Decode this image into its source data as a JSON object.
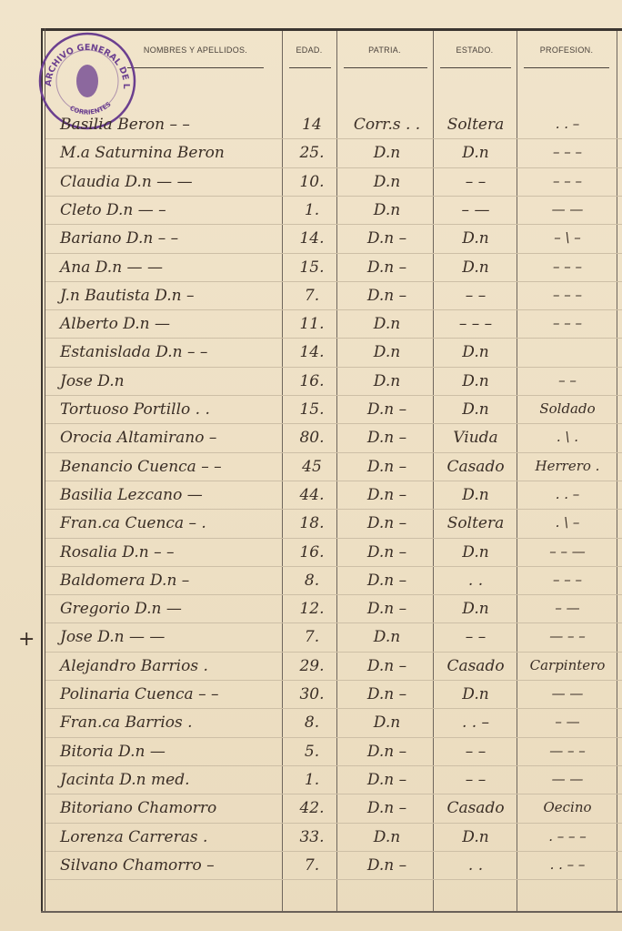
{
  "header": {
    "columns": [
      "NOMBRES Y APELLIDOS.",
      "EDAD.",
      "PATRIA.",
      "ESTADO.",
      "PROFESION."
    ]
  },
  "stamp": {
    "top_text": "ARCHIVO GENERAL DE LA PROVINCIA",
    "bottom_text": "CORRIENTES",
    "color": "#6b3f8f"
  },
  "margin_mark": "+",
  "rows": [
    {
      "name": "Basilia Beron  – –",
      "age": "14",
      "patria": "Corr.s . .",
      "estado": "Soltera",
      "profesion": ". . –"
    },
    {
      "name": "M.a Saturnina Beron",
      "age": "25.",
      "patria": "D.n",
      "estado": "D.n",
      "profesion": "– – –"
    },
    {
      "name": "Claudia   D.n  — —",
      "age": "10.",
      "patria": "D.n",
      "estado": "– –",
      "profesion": "– – –"
    },
    {
      "name": "Cleto   D.n  — –",
      "age": "1.",
      "patria": "D.n",
      "estado": "– —",
      "profesion": "— —"
    },
    {
      "name": "Bariano  D.n  – –",
      "age": "14.",
      "patria": "D.n –",
      "estado": "D.n",
      "profesion": "– \\ –"
    },
    {
      "name": "Ana   D.n  — —",
      "age": "15.",
      "patria": "D.n –",
      "estado": "D.n",
      "profesion": "– – –"
    },
    {
      "name": "J.n Bautista  D.n –",
      "age": "7.",
      "patria": "D.n –",
      "estado": "– –",
      "profesion": "– – –"
    },
    {
      "name": "Alberto   D.n  —",
      "age": "11.",
      "patria": "D.n",
      "estado": "– – –",
      "profesion": "– – –"
    },
    {
      "name": "Estanislada   D.n  – –",
      "age": "14.",
      "patria": "D.n",
      "estado": "D.n",
      "profesion": ""
    },
    {
      "name": "Jose   D.n",
      "age": "16.",
      "patria": "D.n",
      "estado": "D.n",
      "profesion": "– –"
    },
    {
      "name": "Tortuoso Portillo  . .",
      "age": "15.",
      "patria": "D.n –",
      "estado": "D.n",
      "profesion": "Soldado"
    },
    {
      "name": "Orocia  Altamirano –",
      "age": "80.",
      "patria": "D.n –",
      "estado": "Viuda",
      "profesion": ". \\ ."
    },
    {
      "name": "Benancio  Cuenca  – –",
      "age": "45",
      "patria": "D.n –",
      "estado": "Casado",
      "profesion": "Herrero ."
    },
    {
      "name": "Basilia Lezcano  —",
      "age": "44.",
      "patria": "D.n –",
      "estado": "D.n",
      "profesion": ". . –"
    },
    {
      "name": "Fran.ca  Cuenca  – .",
      "age": "18.",
      "patria": "D.n –",
      "estado": "Soltera",
      "profesion": ". \\ –"
    },
    {
      "name": "Rosalia   D.n  – –",
      "age": "16.",
      "patria": "D.n –",
      "estado": "D.n",
      "profesion": "– – —"
    },
    {
      "name": "Baldomera  D.n  –",
      "age": "8.",
      "patria": "D.n –",
      "estado": ". .",
      "profesion": "– – –"
    },
    {
      "name": "Gregorio   D.n  —",
      "age": "12.",
      "patria": "D.n –",
      "estado": "D.n",
      "profesion": "– —"
    },
    {
      "name": "Jose  D.n  — —",
      "age": "7.",
      "patria": "D.n",
      "estado": "– –",
      "profesion": "— – –"
    },
    {
      "name": "Alejandro  Barrios  .",
      "age": "29.",
      "patria": "D.n –",
      "estado": "Casado",
      "profesion": "Carpintero"
    },
    {
      "name": "Polinaria  Cuenca  – –",
      "age": "30.",
      "patria": "D.n –",
      "estado": "D.n",
      "profesion": "— —"
    },
    {
      "name": "Fran.ca   Barrios  .",
      "age": "8.",
      "patria": "D.n",
      "estado": ". . –",
      "profesion": "– —"
    },
    {
      "name": "Bitoria   D.n  —",
      "age": "5.",
      "patria": "D.n –",
      "estado": "– –",
      "profesion": "— – –"
    },
    {
      "name": "Jacinta   D.n  med.",
      "age": "1.",
      "patria": "D.n –",
      "estado": "– –",
      "profesion": "— —"
    },
    {
      "name": "Bitoriano  Chamorro",
      "age": "42.",
      "patria": "D.n –",
      "estado": "Casado",
      "profesion": "Oecino"
    },
    {
      "name": "Lorenza  Carreras  .",
      "age": "33.",
      "patria": "D.n",
      "estado": "D.n",
      "profesion": ". – – –"
    },
    {
      "name": "Silvano  Chamorro –",
      "age": "7.",
      "patria": "D.n –",
      "estado": ". .",
      "profesion": ". . – –"
    }
  ]
}
